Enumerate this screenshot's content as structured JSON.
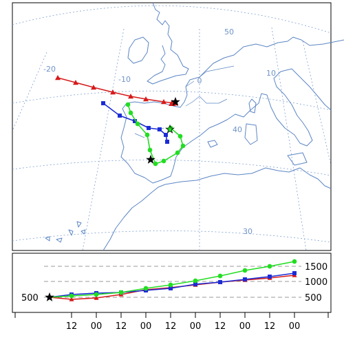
{
  "map": {
    "lon_labels": [
      "-20",
      "-10",
      "0",
      "10"
    ],
    "lat_labels": [
      "50",
      "40",
      "30"
    ],
    "colors": {
      "coast": "#5b85c4",
      "grid": "#7fa0d0",
      "label": "#6f93c9"
    }
  },
  "trajectories": {
    "source_marker": "star",
    "series": [
      {
        "color": "#d61a1a",
        "marker": "triangle"
      },
      {
        "color": "#1a2bd6",
        "marker": "square"
      },
      {
        "color": "#22dd22",
        "marker": "circle"
      }
    ]
  },
  "height_panel": {
    "start_label": "500",
    "right_labels": [
      "1500",
      "1000",
      "500"
    ],
    "time_ticks": [
      "12",
      "00",
      "12",
      "00",
      "12",
      "00",
      "12",
      "00",
      "12",
      "00"
    ]
  }
}
